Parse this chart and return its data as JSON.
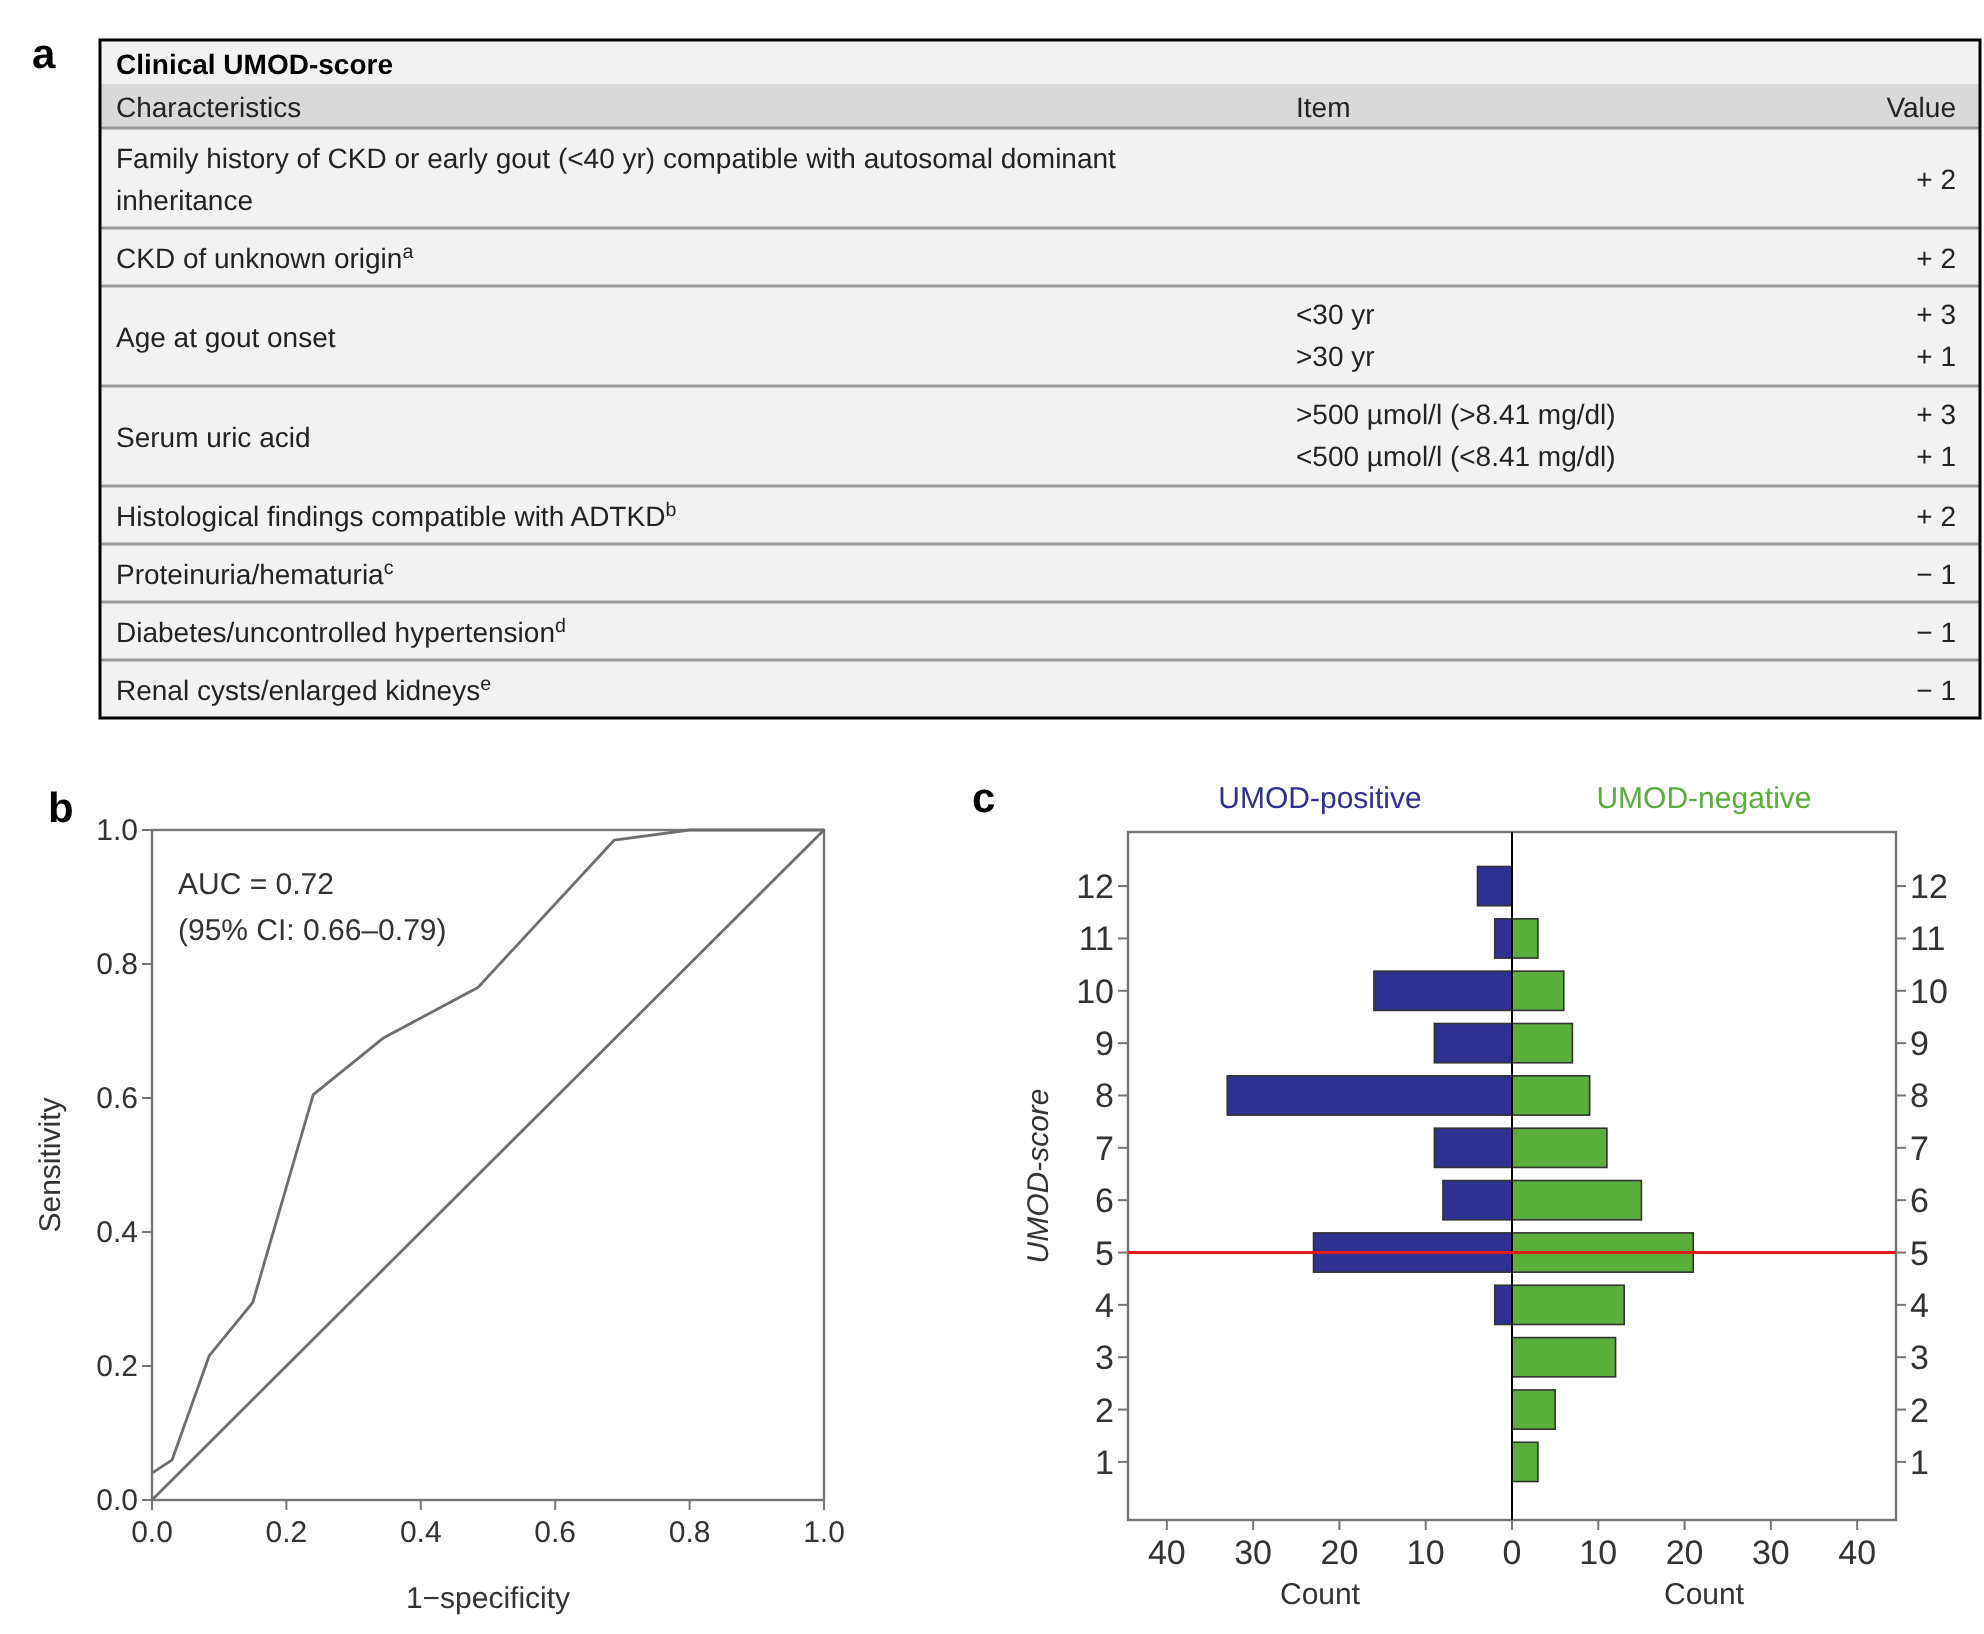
{
  "chart_data": [
    {
      "type": "other",
      "title": "Clinical UMOD-score",
      "annotations": [
        "a",
        "Characteristics",
        "Item",
        "Value",
        "Family history of CKD or early gout (<40 yr) compatible with autosomal dominant inheritance",
        "+ 2",
        "CKD of unknown origin$^{a}$",
        "+ 2",
        "Age at gout onset",
        "<30 yr",
        "+ 3",
        ">30 yr",
        "+ 1",
        "Serum uric acid",
        ">500 µmol/l (>8.41 mg/dl)",
        "+ 3",
        "<500 µmol/l (<8.41 mg/dl)",
        "+ 1",
        "Histological findings compatible with ADTKD$^{b}$",
        "+ 2",
        "Proteinuria/hematuria$^{c}$",
        "− 1",
        "Diabetes/uncontrolled hypertension$^{d}$",
        "− 1",
        "Renal cysts/enlarged kidneys$^{e}$",
        "− 1"
      ]
    },
    {
      "type": "line",
      "xlabel": "1−specificity",
      "ylabel": "Sensitivity",
      "annotations": [
        "b",
        "AUC = 0.72",
        "(95% CI: 0.66–0.79)"
      ],
      "xlim": [
        0,
        1
      ],
      "ylim": [
        0,
        1
      ],
      "xticks": [
        {
          "value": 0,
          "label": "0.0"
        },
        0.2,
        0.4,
        0.6,
        0.8,
        {
          "value": 1,
          "label": "1.0"
        }
      ],
      "yticks": [
        {
          "value": 0,
          "label": "0.0"
        },
        0.2,
        0.4,
        0.6,
        0.8,
        {
          "value": 1,
          "label": "1.0"
        }
      ],
      "series": [
        {
          "color": "#6e6e6e",
          "x": [
            0,
            0.03,
            0.085,
            0.15,
            0.24,
            0.345,
            0.485,
            0.688,
            0.8,
            1
          ],
          "values": [
            0.04,
            0.06,
            0.215,
            0.295,
            0.605,
            0.69,
            0.765,
            0.985,
            1,
            1
          ]
        },
        {
          "color": "#6e6e6e",
          "x": [
            0,
            1
          ],
          "values": [
            0,
            1
          ]
        }
      ]
    },
    {
      "type": "bar",
      "orientation": "horizontal",
      "stacked": true,
      "xlabel": "Count",
      "ylabel": "UMOD-score",
      "legend": "top",
      "annotations": [
        "c"
      ],
      "categories": [
        "12",
        "11",
        "10",
        "9",
        "8",
        "7",
        "6",
        "5",
        "4",
        "3",
        "2",
        "1"
      ],
      "xlim": [
        -44.5,
        44.5
      ],
      "xticks": [
        {
          "value": -40,
          "label": "40"
        },
        {
          "value": -30,
          "label": "30"
        },
        {
          "value": -20,
          "label": "20"
        },
        {
          "value": -10,
          "label": "10"
        },
        0,
        10,
        20,
        30,
        40
      ],
      "series": [
        {
          "name": "UMOD-positive",
          "color": "#2e3192",
          "values": [
            -4,
            -2,
            -16,
            -9,
            -33,
            -9,
            -8,
            -23,
            -2,
            null,
            null,
            null
          ]
        },
        {
          "name": "UMOD-negative",
          "color": "#5aaf3c",
          "values": [
            null,
            3,
            6,
            7,
            9,
            11,
            15,
            21,
            13,
            12,
            5,
            3
          ]
        }
      ],
      "ref_lines": [
        {
          "axis": "y",
          "value": "5",
          "color": "#e31a1c"
        }
      ]
    }
  ]
}
